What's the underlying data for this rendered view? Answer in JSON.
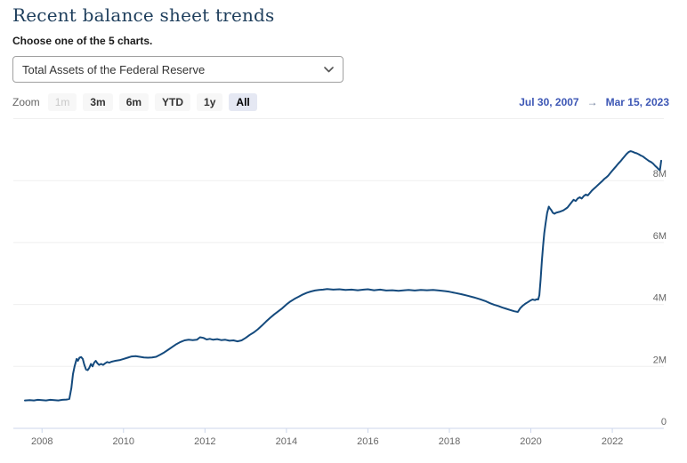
{
  "header": {
    "title": "Recent balance sheet trends",
    "subtitle": "Choose one of the 5 charts."
  },
  "selector": {
    "value": "Total Assets of the Federal Reserve",
    "chevron_icon": "chevron-down"
  },
  "toolbar": {
    "zoom_label": "Zoom",
    "buttons": [
      {
        "label": "1m",
        "state": "disabled"
      },
      {
        "label": "3m",
        "state": "default"
      },
      {
        "label": "6m",
        "state": "default"
      },
      {
        "label": "YTD",
        "state": "default"
      },
      {
        "label": "1y",
        "state": "default"
      },
      {
        "label": "All",
        "state": "selected"
      }
    ],
    "date_range": {
      "start": "Jul 30, 2007",
      "arrow": "→",
      "end": "Mar 15, 2023"
    }
  },
  "colors": {
    "line": "#144a7d",
    "title_text": "#1e3e5c",
    "date_range_text": "#3d57b5",
    "grid": "#efefef",
    "axis": "#ccd6eb",
    "tick_label": "#666666",
    "button_bg": "#f7f7f7",
    "button_selected_bg": "#e5e8f3"
  },
  "chart_data": {
    "type": "line",
    "title": "Total Assets of the Federal Reserve",
    "xlabel": "",
    "ylabel": "",
    "xlim": [
      2007.58,
      2023.2
    ],
    "ylim": [
      0,
      10
    ],
    "grid": true,
    "legend": "none",
    "xticks": [
      2008,
      2010,
      2012,
      2014,
      2016,
      2018,
      2020,
      2022
    ],
    "yticks": [
      {
        "value": 0,
        "label": "0"
      },
      {
        "value": 2,
        "label": "2M"
      },
      {
        "value": 4,
        "label": "4M"
      },
      {
        "value": 6,
        "label": "6M"
      },
      {
        "value": 8,
        "label": "8M"
      },
      {
        "value": 10,
        "label": ""
      }
    ],
    "series": [
      {
        "name": "Total Assets of the Federal Reserve",
        "points": [
          [
            2007.58,
            0.9
          ],
          [
            2007.7,
            0.91
          ],
          [
            2007.8,
            0.9
          ],
          [
            2007.9,
            0.92
          ],
          [
            2008.0,
            0.91
          ],
          [
            2008.1,
            0.9
          ],
          [
            2008.2,
            0.92
          ],
          [
            2008.3,
            0.91
          ],
          [
            2008.4,
            0.9
          ],
          [
            2008.5,
            0.92
          ],
          [
            2008.6,
            0.93
          ],
          [
            2008.67,
            0.95
          ],
          [
            2008.72,
            1.3
          ],
          [
            2008.76,
            1.75
          ],
          [
            2008.8,
            2.0
          ],
          [
            2008.85,
            2.24
          ],
          [
            2008.88,
            2.18
          ],
          [
            2008.92,
            2.28
          ],
          [
            2008.96,
            2.3
          ],
          [
            2009.0,
            2.24
          ],
          [
            2009.04,
            2.05
          ],
          [
            2009.08,
            1.9
          ],
          [
            2009.12,
            1.88
          ],
          [
            2009.16,
            1.95
          ],
          [
            2009.2,
            2.08
          ],
          [
            2009.24,
            2.0
          ],
          [
            2009.28,
            2.12
          ],
          [
            2009.32,
            2.18
          ],
          [
            2009.36,
            2.1
          ],
          [
            2009.4,
            2.05
          ],
          [
            2009.45,
            2.08
          ],
          [
            2009.5,
            2.05
          ],
          [
            2009.55,
            2.1
          ],
          [
            2009.6,
            2.14
          ],
          [
            2009.65,
            2.12
          ],
          [
            2009.7,
            2.15
          ],
          [
            2009.8,
            2.18
          ],
          [
            2009.9,
            2.2
          ],
          [
            2010.0,
            2.24
          ],
          [
            2010.1,
            2.28
          ],
          [
            2010.2,
            2.32
          ],
          [
            2010.3,
            2.33
          ],
          [
            2010.4,
            2.31
          ],
          [
            2010.5,
            2.29
          ],
          [
            2010.6,
            2.28
          ],
          [
            2010.7,
            2.29
          ],
          [
            2010.8,
            2.31
          ],
          [
            2010.9,
            2.38
          ],
          [
            2011.0,
            2.45
          ],
          [
            2011.1,
            2.54
          ],
          [
            2011.2,
            2.63
          ],
          [
            2011.3,
            2.72
          ],
          [
            2011.4,
            2.79
          ],
          [
            2011.5,
            2.84
          ],
          [
            2011.6,
            2.86
          ],
          [
            2011.7,
            2.85
          ],
          [
            2011.8,
            2.86
          ],
          [
            2011.88,
            2.94
          ],
          [
            2011.96,
            2.92
          ],
          [
            2012.04,
            2.87
          ],
          [
            2012.12,
            2.89
          ],
          [
            2012.2,
            2.86
          ],
          [
            2012.3,
            2.88
          ],
          [
            2012.4,
            2.85
          ],
          [
            2012.5,
            2.86
          ],
          [
            2012.6,
            2.83
          ],
          [
            2012.7,
            2.84
          ],
          [
            2012.8,
            2.81
          ],
          [
            2012.9,
            2.84
          ],
          [
            2013.0,
            2.92
          ],
          [
            2013.1,
            3.02
          ],
          [
            2013.2,
            3.1
          ],
          [
            2013.3,
            3.2
          ],
          [
            2013.4,
            3.32
          ],
          [
            2013.5,
            3.45
          ],
          [
            2013.6,
            3.57
          ],
          [
            2013.7,
            3.68
          ],
          [
            2013.8,
            3.78
          ],
          [
            2013.9,
            3.88
          ],
          [
            2014.0,
            4.0
          ],
          [
            2014.1,
            4.1
          ],
          [
            2014.2,
            4.18
          ],
          [
            2014.3,
            4.25
          ],
          [
            2014.4,
            4.32
          ],
          [
            2014.5,
            4.38
          ],
          [
            2014.6,
            4.42
          ],
          [
            2014.7,
            4.45
          ],
          [
            2014.8,
            4.47
          ],
          [
            2014.9,
            4.48
          ],
          [
            2015.0,
            4.5
          ],
          [
            2015.15,
            4.48
          ],
          [
            2015.3,
            4.49
          ],
          [
            2015.45,
            4.47
          ],
          [
            2015.6,
            4.48
          ],
          [
            2015.75,
            4.46
          ],
          [
            2015.9,
            4.48
          ],
          [
            2016.0,
            4.49
          ],
          [
            2016.15,
            4.46
          ],
          [
            2016.3,
            4.48
          ],
          [
            2016.45,
            4.45
          ],
          [
            2016.6,
            4.46
          ],
          [
            2016.75,
            4.44
          ],
          [
            2016.9,
            4.46
          ],
          [
            2017.0,
            4.47
          ],
          [
            2017.15,
            4.45
          ],
          [
            2017.3,
            4.47
          ],
          [
            2017.45,
            4.46
          ],
          [
            2017.6,
            4.47
          ],
          [
            2017.75,
            4.45
          ],
          [
            2017.9,
            4.43
          ],
          [
            2018.0,
            4.41
          ],
          [
            2018.15,
            4.37
          ],
          [
            2018.3,
            4.33
          ],
          [
            2018.45,
            4.28
          ],
          [
            2018.6,
            4.23
          ],
          [
            2018.75,
            4.17
          ],
          [
            2018.9,
            4.1
          ],
          [
            2019.0,
            4.04
          ],
          [
            2019.1,
            3.99
          ],
          [
            2019.2,
            3.95
          ],
          [
            2019.3,
            3.9
          ],
          [
            2019.4,
            3.86
          ],
          [
            2019.5,
            3.82
          ],
          [
            2019.6,
            3.78
          ],
          [
            2019.68,
            3.76
          ],
          [
            2019.74,
            3.88
          ],
          [
            2019.8,
            3.96
          ],
          [
            2019.86,
            4.02
          ],
          [
            2019.92,
            4.07
          ],
          [
            2019.98,
            4.12
          ],
          [
            2020.04,
            4.16
          ],
          [
            2020.1,
            4.14
          ],
          [
            2020.14,
            4.17
          ],
          [
            2020.18,
            4.16
          ],
          [
            2020.21,
            4.3
          ],
          [
            2020.24,
            4.8
          ],
          [
            2020.27,
            5.4
          ],
          [
            2020.3,
            5.9
          ],
          [
            2020.33,
            6.3
          ],
          [
            2020.36,
            6.6
          ],
          [
            2020.4,
            6.95
          ],
          [
            2020.44,
            7.16
          ],
          [
            2020.47,
            7.1
          ],
          [
            2020.5,
            7.05
          ],
          [
            2020.54,
            6.96
          ],
          [
            2020.58,
            6.93
          ],
          [
            2020.62,
            6.96
          ],
          [
            2020.7,
            6.99
          ],
          [
            2020.8,
            7.04
          ],
          [
            2020.9,
            7.13
          ],
          [
            2021.0,
            7.3
          ],
          [
            2021.05,
            7.38
          ],
          [
            2021.1,
            7.34
          ],
          [
            2021.15,
            7.42
          ],
          [
            2021.2,
            7.46
          ],
          [
            2021.25,
            7.42
          ],
          [
            2021.3,
            7.5
          ],
          [
            2021.35,
            7.55
          ],
          [
            2021.4,
            7.52
          ],
          [
            2021.45,
            7.6
          ],
          [
            2021.5,
            7.68
          ],
          [
            2021.55,
            7.74
          ],
          [
            2021.6,
            7.8
          ],
          [
            2021.65,
            7.86
          ],
          [
            2021.7,
            7.92
          ],
          [
            2021.75,
            7.98
          ],
          [
            2021.8,
            8.05
          ],
          [
            2021.85,
            8.1
          ],
          [
            2021.9,
            8.16
          ],
          [
            2021.95,
            8.24
          ],
          [
            2022.0,
            8.32
          ],
          [
            2022.05,
            8.4
          ],
          [
            2022.1,
            8.47
          ],
          [
            2022.15,
            8.55
          ],
          [
            2022.2,
            8.62
          ],
          [
            2022.25,
            8.7
          ],
          [
            2022.3,
            8.78
          ],
          [
            2022.35,
            8.86
          ],
          [
            2022.4,
            8.92
          ],
          [
            2022.45,
            8.95
          ],
          [
            2022.5,
            8.93
          ],
          [
            2022.55,
            8.9
          ],
          [
            2022.6,
            8.88
          ],
          [
            2022.65,
            8.85
          ],
          [
            2022.7,
            8.81
          ],
          [
            2022.75,
            8.78
          ],
          [
            2022.8,
            8.73
          ],
          [
            2022.85,
            8.68
          ],
          [
            2022.9,
            8.63
          ],
          [
            2022.95,
            8.6
          ],
          [
            2023.0,
            8.55
          ],
          [
            2023.05,
            8.48
          ],
          [
            2023.1,
            8.42
          ],
          [
            2023.14,
            8.36
          ],
          [
            2023.17,
            8.34
          ],
          [
            2023.2,
            8.64
          ]
        ]
      }
    ]
  }
}
